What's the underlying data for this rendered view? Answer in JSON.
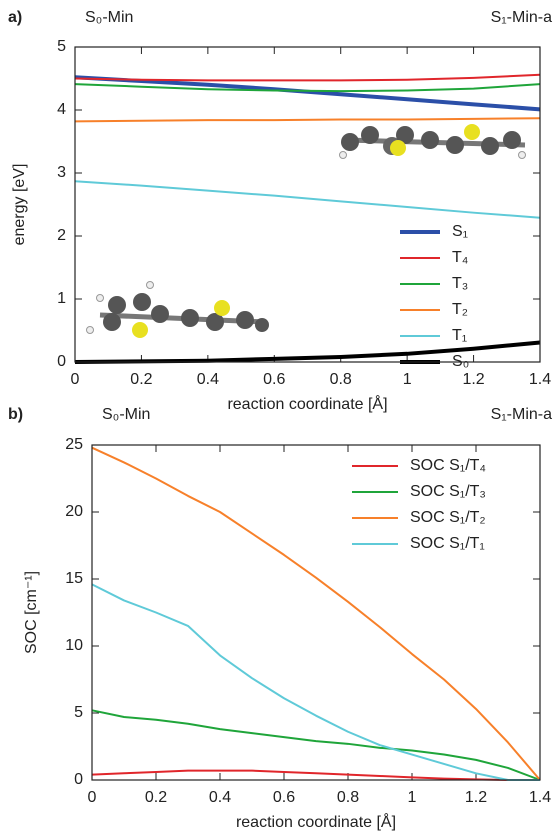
{
  "chart_data": [
    {
      "type": "line",
      "panel_label": "a)",
      "annotations": [
        "S₀-Min",
        "S₁-Min-a"
      ],
      "xlabel": "reaction coordinate [Å]",
      "ylabel": "energy [eV]",
      "xlim": [
        0,
        1.4
      ],
      "xticks": [
        0,
        0.2,
        0.4,
        0.6,
        0.8,
        1,
        1.2,
        1.4
      ],
      "ylim": [
        0,
        5
      ],
      "yticks": [
        0,
        1,
        2,
        3,
        4,
        5
      ],
      "legend": "lower right",
      "x": [
        0,
        0.2,
        0.4,
        0.6,
        0.8,
        1,
        1.2,
        1.4
      ],
      "series": [
        {
          "name": "S₁",
          "color": "#2b4fa8",
          "linewidth": 4,
          "values": [
            4.52,
            4.46,
            4.4,
            4.33,
            4.25,
            4.17,
            4.09,
            4.01
          ]
        },
        {
          "name": "T₄",
          "color": "#e0262b",
          "linewidth": 2,
          "values": [
            4.5,
            4.48,
            4.47,
            4.47,
            4.47,
            4.48,
            4.51,
            4.56
          ]
        },
        {
          "name": "T₃",
          "color": "#1fa53a",
          "linewidth": 2,
          "values": [
            4.41,
            4.37,
            4.33,
            4.31,
            4.3,
            4.31,
            4.34,
            4.41
          ]
        },
        {
          "name": "T₂",
          "color": "#f7802a",
          "linewidth": 2,
          "values": [
            3.82,
            3.83,
            3.84,
            3.84,
            3.85,
            3.85,
            3.86,
            3.87
          ]
        },
        {
          "name": "T₁",
          "color": "#5fcad8",
          "linewidth": 2,
          "values": [
            2.87,
            2.8,
            2.72,
            2.64,
            2.55,
            2.46,
            2.37,
            2.29
          ]
        },
        {
          "name": "S₀",
          "color": "#000000",
          "linewidth": 4,
          "values": [
            0.0,
            0.01,
            0.02,
            0.05,
            0.08,
            0.13,
            0.21,
            0.31
          ]
        }
      ]
    },
    {
      "type": "line",
      "panel_label": "b)",
      "annotations": [
        "S₀-Min",
        "S₁-Min-a"
      ],
      "xlabel": "reaction coordinate [Å]",
      "ylabel": "SOC [cm⁻¹]",
      "xlim": [
        0,
        1.4
      ],
      "xticks": [
        0,
        0.2,
        0.4,
        0.6,
        0.8,
        1,
        1.2,
        1.4
      ],
      "ylim": [
        0,
        25
      ],
      "yticks": [
        0,
        5,
        10,
        15,
        20,
        25
      ],
      "legend": "upper right",
      "x": [
        0,
        0.1,
        0.2,
        0.3,
        0.4,
        0.5,
        0.6,
        0.7,
        0.8,
        0.9,
        1,
        1.1,
        1.2,
        1.3,
        1.4
      ],
      "series": [
        {
          "name": "SOC S₁/T₄",
          "color": "#e0262b",
          "linewidth": 2,
          "values": [
            0.4,
            0.5,
            0.6,
            0.7,
            0.7,
            0.7,
            0.6,
            0.5,
            0.4,
            0.3,
            0.2,
            0.1,
            0.05,
            0.0,
            0.0
          ]
        },
        {
          "name": "SOC S₁/T₃",
          "color": "#1fa53a",
          "linewidth": 2,
          "values": [
            5.2,
            4.7,
            4.5,
            4.2,
            3.8,
            3.5,
            3.2,
            2.9,
            2.7,
            2.4,
            2.2,
            1.9,
            1.5,
            0.9,
            0.0
          ]
        },
        {
          "name": "SOC S₁/T₂",
          "color": "#f7802a",
          "linewidth": 2,
          "values": [
            24.8,
            23.7,
            22.5,
            21.2,
            20.0,
            18.4,
            16.8,
            15.1,
            13.3,
            11.4,
            9.4,
            7.5,
            5.3,
            2.8,
            0.0
          ]
        },
        {
          "name": "SOC S₁/T₁",
          "color": "#5fcad8",
          "linewidth": 2,
          "values": [
            14.6,
            13.4,
            12.5,
            11.5,
            9.3,
            7.6,
            6.1,
            4.8,
            3.6,
            2.6,
            1.9,
            1.2,
            0.5,
            0.0,
            0.0
          ]
        }
      ]
    }
  ]
}
